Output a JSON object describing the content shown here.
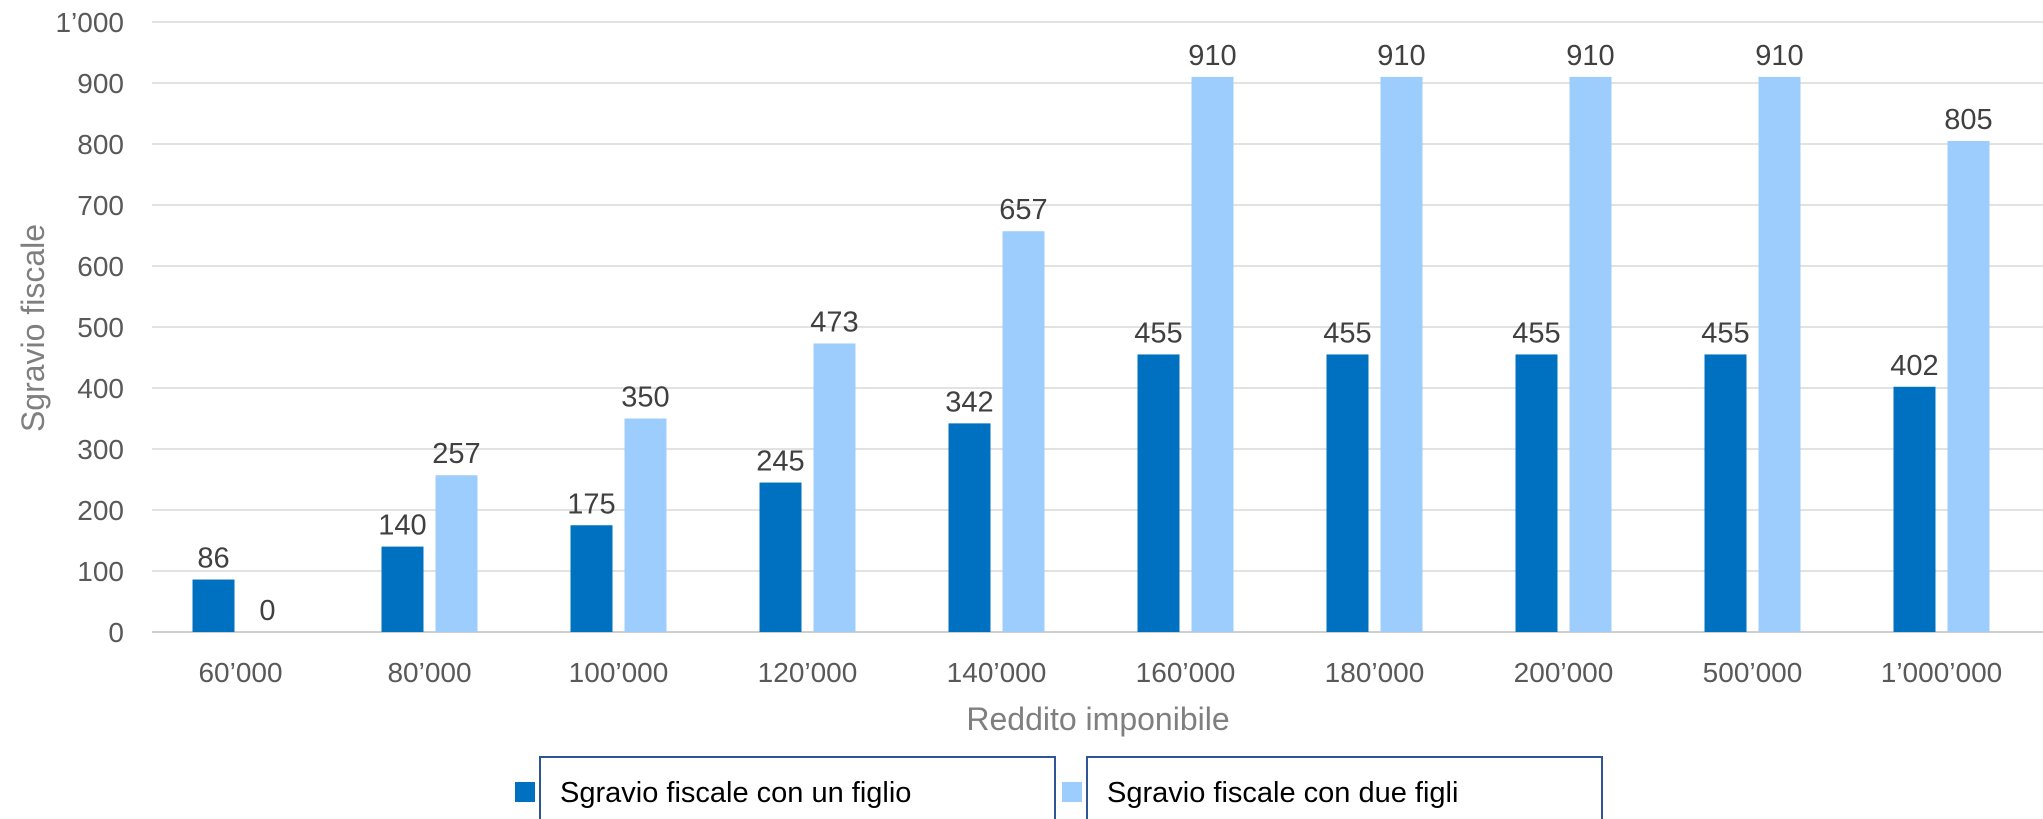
{
  "chart_data": {
    "type": "bar",
    "title": "",
    "xlabel": "Reddito imponibile",
    "ylabel": "Sgravio fiscale",
    "ylim": [
      0,
      1000
    ],
    "yticks": [
      0,
      100,
      200,
      300,
      400,
      500,
      600,
      700,
      800,
      900,
      1000
    ],
    "ytick_labels": [
      "0",
      "100",
      "200",
      "300",
      "400",
      "500",
      "600",
      "700",
      "800",
      "900",
      "1’000"
    ],
    "categories": [
      "60’000",
      "80’000",
      "100’000",
      "120’000",
      "140’000",
      "160’000",
      "180’000",
      "200’000",
      "500’000",
      "1’000’000"
    ],
    "series": [
      {
        "name": "Sgravio fiscale con un figlio",
        "color": "#0070c0",
        "values": [
          86,
          140,
          175,
          245,
          342,
          455,
          455,
          455,
          455,
          402
        ]
      },
      {
        "name": "Sgravio fiscale con due figli",
        "color": "#9dcdfc",
        "values": [
          0,
          257,
          350,
          473,
          657,
          910,
          910,
          910,
          910,
          805
        ]
      }
    ],
    "grid": true,
    "legend_position": "bottom",
    "data_labels": true
  }
}
